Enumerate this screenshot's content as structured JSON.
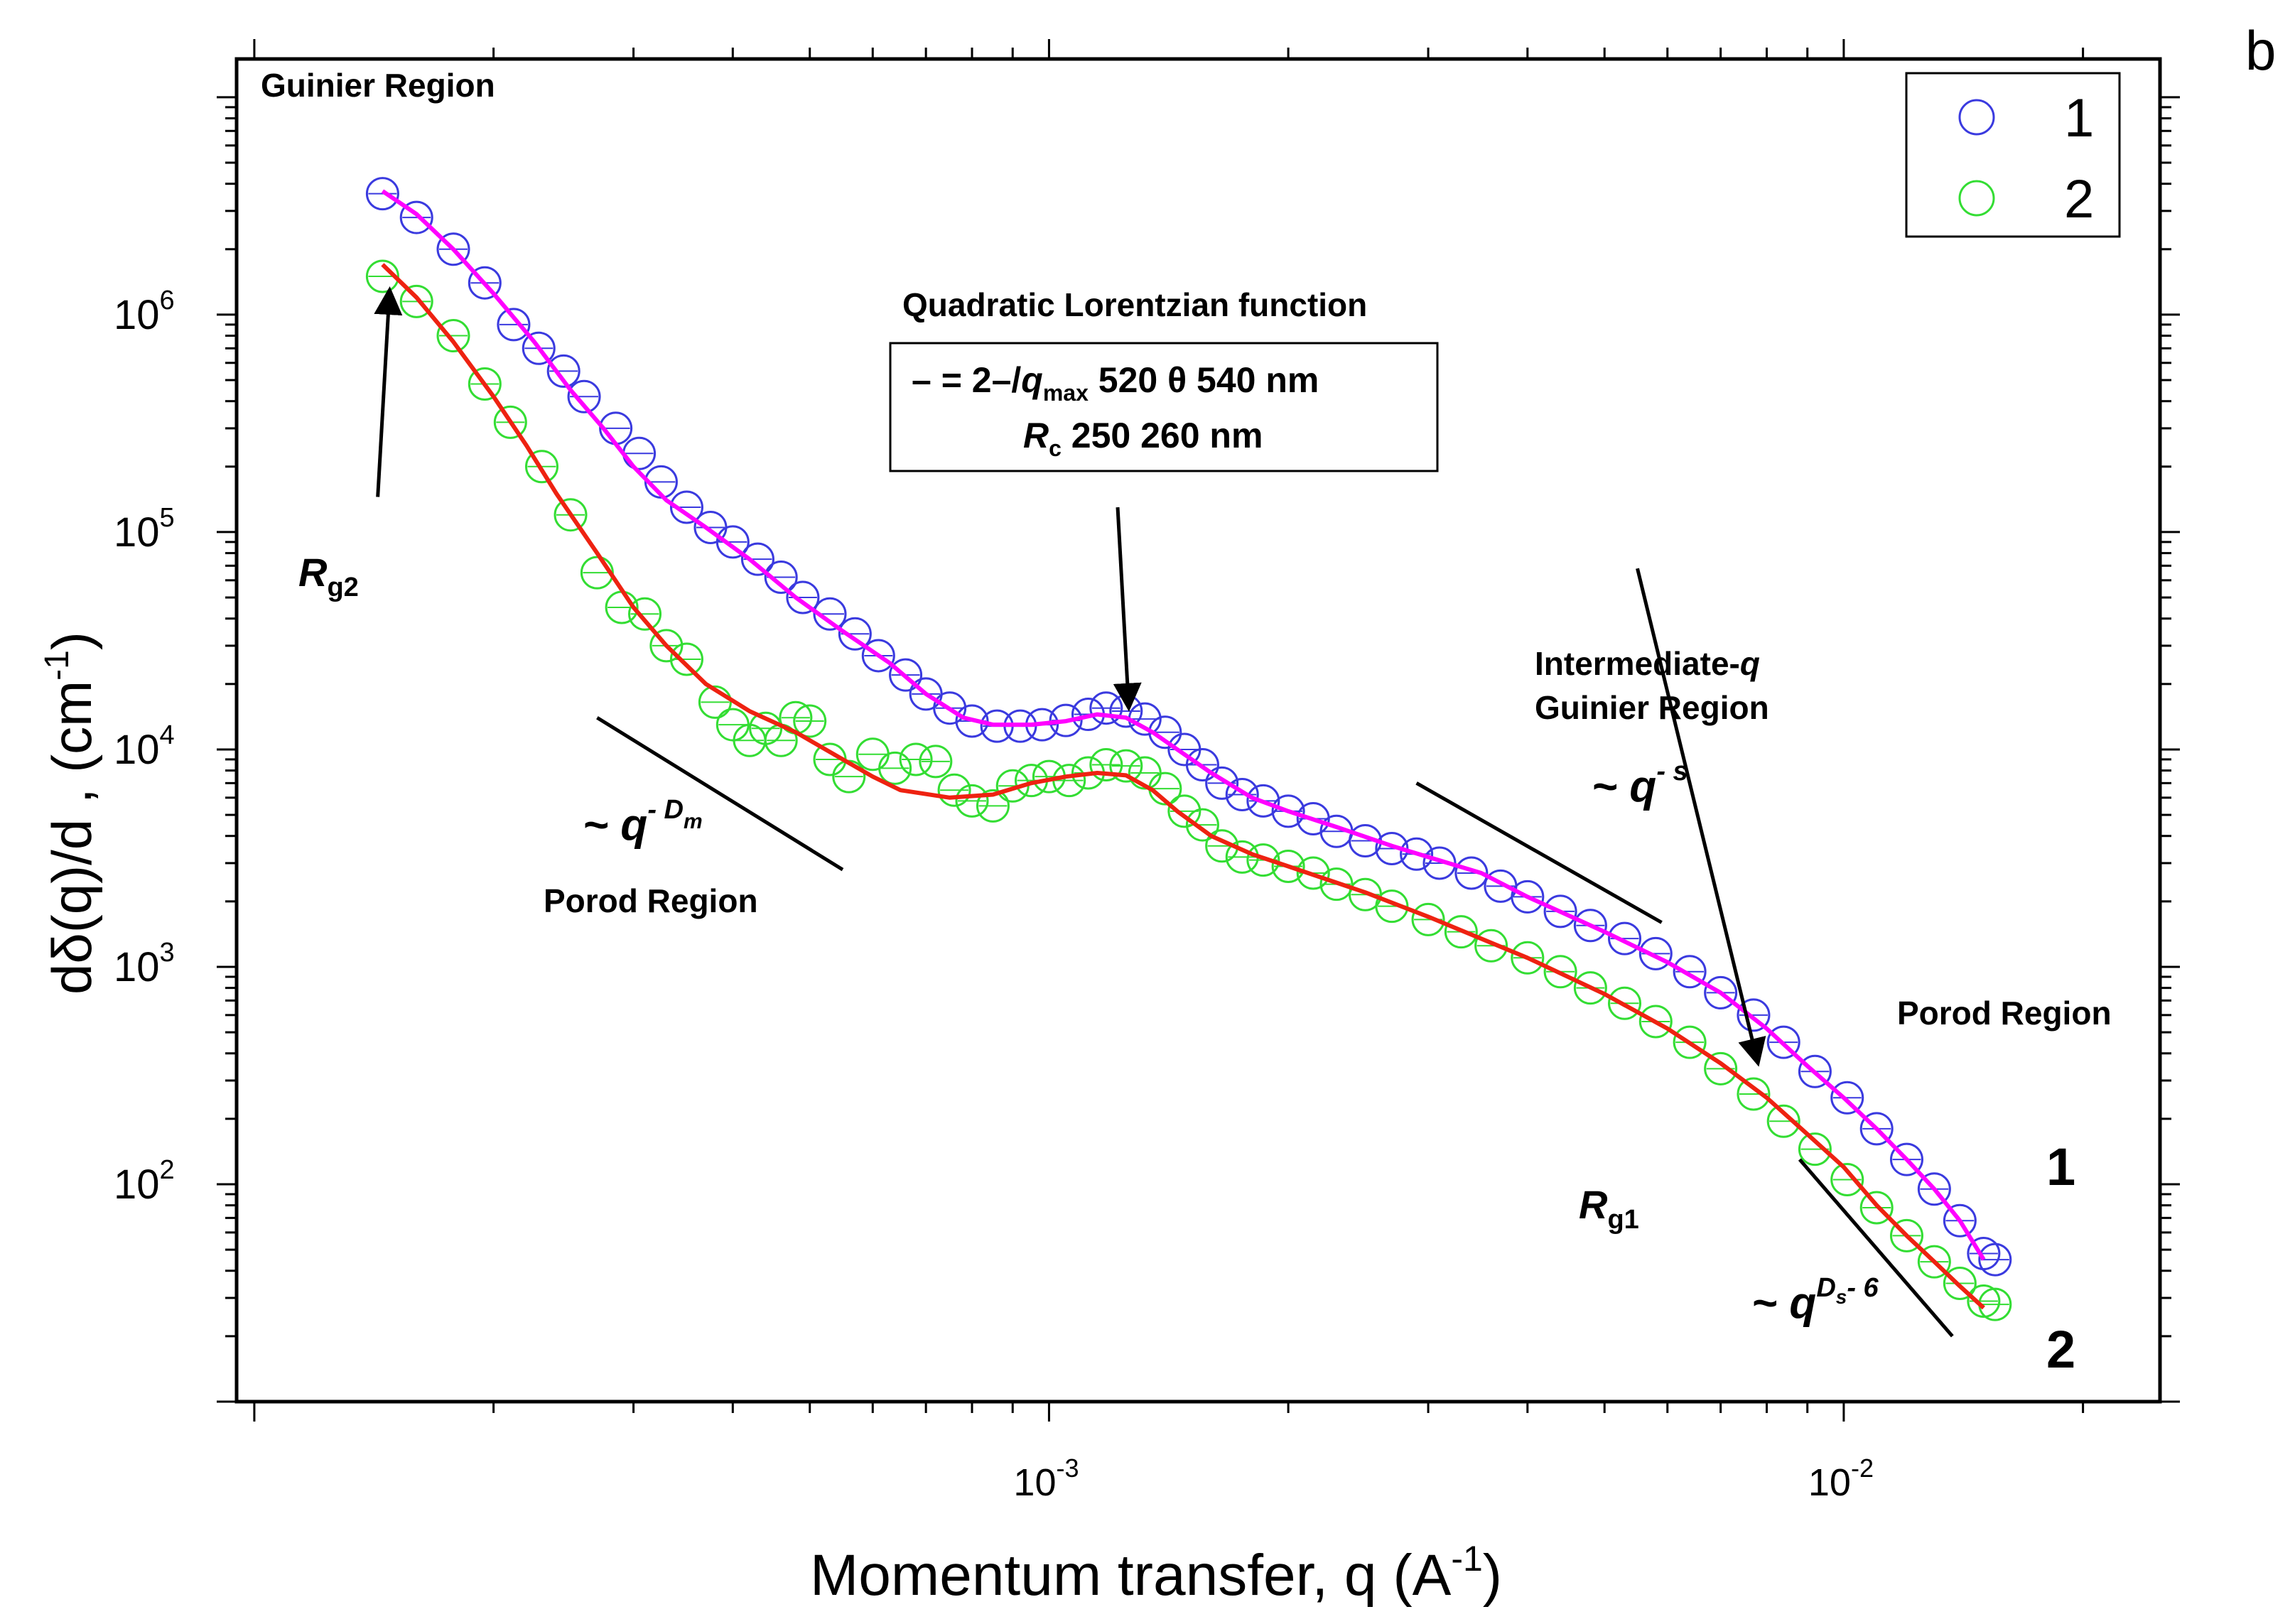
{
  "chart_data": {
    "type": "scatter",
    "panel_label": "b",
    "xlabel": "Momentum transfer, q (A",
    "xlabel_exp": "-1",
    "xlabel_close": ")",
    "ylabel": "dδ(q)/d  , (cm",
    "ylabel_exp": "-1",
    "ylabel_close": ")",
    "x_scale": "log",
    "y_scale": "log",
    "xlim": [
      9.5e-05,
      0.025
    ],
    "ylim": [
      10,
      15000000
    ],
    "x_ticks": [
      {
        "value": 0.001,
        "mantissa": "10",
        "exp": "-3"
      },
      {
        "value": 0.01,
        "mantissa": "10",
        "exp": "-2"
      }
    ],
    "y_ticks": [
      {
        "value": 100,
        "mantissa": "10",
        "exp": "2"
      },
      {
        "value": 1000,
        "mantissa": "10",
        "exp": "3"
      },
      {
        "value": 10000,
        "mantissa": "10",
        "exp": "4"
      },
      {
        "value": 100000,
        "mantissa": "10",
        "exp": "5"
      },
      {
        "value": 1000000,
        "mantissa": "10",
        "exp": "6"
      }
    ],
    "legend": {
      "position": "top-right",
      "entries": [
        {
          "label": "1",
          "color": "#3a3adf"
        },
        {
          "label": "2",
          "color": "#33dd33"
        }
      ]
    },
    "series": [
      {
        "name": "1",
        "marker": "open-circle",
        "color": "#3a3adf",
        "fit_color": "#ff00ff",
        "points": [
          [
            0.000145,
            3600000
          ],
          [
            0.00016,
            2800000
          ],
          [
            0.000178,
            2000000
          ],
          [
            0.000195,
            1400000
          ],
          [
            0.000212,
            900000
          ],
          [
            0.000228,
            700000
          ],
          [
            0.000245,
            550000
          ],
          [
            0.00026,
            420000
          ],
          [
            0.000285,
            300000
          ],
          [
            0.000305,
            230000
          ],
          [
            0.000325,
            170000
          ],
          [
            0.00035,
            130000
          ],
          [
            0.000375,
            105000
          ],
          [
            0.0004,
            90000
          ],
          [
            0.00043,
            75000
          ],
          [
            0.00046,
            62000
          ],
          [
            0.00049,
            50000
          ],
          [
            0.00053,
            42000
          ],
          [
            0.00057,
            34000
          ],
          [
            0.00061,
            27000
          ],
          [
            0.00066,
            22000
          ],
          [
            0.0007,
            18000
          ],
          [
            0.00075,
            15500
          ],
          [
            0.0008,
            13500
          ],
          [
            0.00086,
            12800
          ],
          [
            0.00092,
            12800
          ],
          [
            0.00098,
            13000
          ],
          [
            0.00105,
            13600
          ],
          [
            0.00112,
            14500
          ],
          [
            0.00118,
            15500
          ],
          [
            0.00125,
            15000
          ],
          [
            0.00132,
            13800
          ],
          [
            0.0014,
            12000
          ],
          [
            0.00148,
            10000
          ],
          [
            0.00156,
            8500
          ],
          [
            0.00165,
            7000
          ],
          [
            0.00175,
            6200
          ],
          [
            0.00186,
            5800
          ],
          [
            0.002,
            5200
          ],
          [
            0.00215,
            4800
          ],
          [
            0.0023,
            4200
          ],
          [
            0.0025,
            3800
          ],
          [
            0.0027,
            3500
          ],
          [
            0.0029,
            3300
          ],
          [
            0.0031,
            3000
          ],
          [
            0.0034,
            2700
          ],
          [
            0.0037,
            2350
          ],
          [
            0.004,
            2100
          ],
          [
            0.0044,
            1800
          ],
          [
            0.0048,
            1550
          ],
          [
            0.0053,
            1350
          ],
          [
            0.0058,
            1150
          ],
          [
            0.0064,
            950
          ],
          [
            0.007,
            760
          ],
          [
            0.0077,
            600
          ],
          [
            0.0084,
            450
          ],
          [
            0.0092,
            330
          ],
          [
            0.0101,
            250
          ],
          [
            0.011,
            180
          ],
          [
            0.012,
            130
          ],
          [
            0.013,
            95
          ],
          [
            0.014,
            68
          ],
          [
            0.015,
            48
          ],
          [
            0.0155,
            45
          ]
        ],
        "fit": [
          [
            0.000145,
            3700000
          ],
          [
            0.00016,
            2900000
          ],
          [
            0.000178,
            2000000
          ],
          [
            0.0002,
            1250000
          ],
          [
            0.000225,
            750000
          ],
          [
            0.00025,
            450000
          ],
          [
            0.000275,
            300000
          ],
          [
            0.0003,
            200000
          ],
          [
            0.00033,
            140000
          ],
          [
            0.00037,
            105000
          ],
          [
            0.00042,
            75000
          ],
          [
            0.00048,
            50000
          ],
          [
            0.00055,
            35000
          ],
          [
            0.00063,
            25000
          ],
          [
            0.0007,
            18000
          ],
          [
            0.00078,
            14000
          ],
          [
            0.00085,
            13000
          ],
          [
            0.00095,
            13000
          ],
          [
            0.00105,
            13500
          ],
          [
            0.00115,
            14500
          ],
          [
            0.00125,
            14000
          ],
          [
            0.00135,
            12000
          ],
          [
            0.00145,
            10000
          ],
          [
            0.0016,
            7800
          ],
          [
            0.0018,
            6000
          ],
          [
            0.002,
            5200
          ],
          [
            0.0023,
            4400
          ],
          [
            0.0027,
            3600
          ],
          [
            0.003,
            3200
          ],
          [
            0.0035,
            2700
          ],
          [
            0.004,
            2100
          ],
          [
            0.005,
            1450
          ],
          [
            0.006,
            1050
          ],
          [
            0.007,
            760
          ],
          [
            0.008,
            520
          ],
          [
            0.009,
            350
          ],
          [
            0.01,
            250
          ],
          [
            0.011,
            180
          ],
          [
            0.012,
            130
          ],
          [
            0.013,
            95
          ],
          [
            0.014,
            68
          ],
          [
            0.015,
            45
          ]
        ]
      },
      {
        "name": "2",
        "marker": "open-circle",
        "color": "#33dd33",
        "fit_color": "#ee2211",
        "points": [
          [
            0.000145,
            1500000
          ],
          [
            0.00016,
            1150000
          ],
          [
            0.000178,
            800000
          ],
          [
            0.000195,
            480000
          ],
          [
            0.00021,
            320000
          ],
          [
            0.00023,
            200000
          ],
          [
            0.00025,
            120000
          ],
          [
            0.00027,
            65000
          ],
          [
            0.00029,
            45000
          ],
          [
            0.00031,
            42000
          ],
          [
            0.00033,
            30000
          ],
          [
            0.00035,
            26000
          ],
          [
            0.00038,
            16500
          ],
          [
            0.0004,
            13000
          ],
          [
            0.00042,
            11000
          ],
          [
            0.00044,
            12500
          ],
          [
            0.00046,
            11000
          ],
          [
            0.00048,
            14000
          ],
          [
            0.0005,
            13500
          ],
          [
            0.00053,
            9000
          ],
          [
            0.00056,
            7500
          ],
          [
            0.0006,
            9500
          ],
          [
            0.00064,
            8200
          ],
          [
            0.00068,
            9000
          ],
          [
            0.00072,
            8800
          ],
          [
            0.00076,
            6500
          ],
          [
            0.0008,
            5800
          ],
          [
            0.00085,
            5500
          ],
          [
            0.0009,
            6800
          ],
          [
            0.00095,
            7200
          ],
          [
            0.001,
            7500
          ],
          [
            0.00106,
            7200
          ],
          [
            0.00112,
            7800
          ],
          [
            0.00118,
            8500
          ],
          [
            0.00125,
            8400
          ],
          [
            0.00132,
            7800
          ],
          [
            0.0014,
            6600
          ],
          [
            0.00148,
            5200
          ],
          [
            0.00156,
            4500
          ],
          [
            0.00165,
            3600
          ],
          [
            0.00175,
            3200
          ],
          [
            0.00186,
            3100
          ],
          [
            0.002,
            2900
          ],
          [
            0.00215,
            2700
          ],
          [
            0.0023,
            2400
          ],
          [
            0.0025,
            2150
          ],
          [
            0.0027,
            1900
          ],
          [
            0.003,
            1650
          ],
          [
            0.0033,
            1450
          ],
          [
            0.0036,
            1250
          ],
          [
            0.004,
            1100
          ],
          [
            0.0044,
            950
          ],
          [
            0.0048,
            800
          ],
          [
            0.0053,
            680
          ],
          [
            0.0058,
            560
          ],
          [
            0.0064,
            450
          ],
          [
            0.007,
            340
          ],
          [
            0.0077,
            260
          ],
          [
            0.0084,
            195
          ],
          [
            0.0092,
            145
          ],
          [
            0.0101,
            105
          ],
          [
            0.011,
            78
          ],
          [
            0.012,
            58
          ],
          [
            0.013,
            44
          ],
          [
            0.014,
            35
          ],
          [
            0.015,
            29
          ],
          [
            0.0155,
            28
          ]
        ],
        "fit": [
          [
            0.000145,
            1700000
          ],
          [
            0.00016,
            1200000
          ],
          [
            0.000178,
            750000
          ],
          [
            0.0002,
            420000
          ],
          [
            0.00022,
            250000
          ],
          [
            0.00024,
            150000
          ],
          [
            0.00027,
            80000
          ],
          [
            0.0003,
            45000
          ],
          [
            0.00033,
            30000
          ],
          [
            0.00037,
            20000
          ],
          [
            0.00042,
            15000
          ],
          [
            0.00048,
            12000
          ],
          [
            0.00055,
            9000
          ],
          [
            0.0006,
            7500
          ],
          [
            0.00065,
            6500
          ],
          [
            0.00075,
            6000
          ],
          [
            0.00085,
            6200
          ],
          [
            0.00095,
            7000
          ],
          [
            0.00105,
            7500
          ],
          [
            0.00115,
            7800
          ],
          [
            0.00125,
            7600
          ],
          [
            0.00135,
            6500
          ],
          [
            0.00145,
            5200
          ],
          [
            0.0016,
            4000
          ],
          [
            0.0018,
            3300
          ],
          [
            0.002,
            2900
          ],
          [
            0.0025,
            2200
          ],
          [
            0.003,
            1700
          ],
          [
            0.004,
            1100
          ],
          [
            0.005,
            750
          ],
          [
            0.006,
            520
          ],
          [
            0.007,
            360
          ],
          [
            0.008,
            250
          ],
          [
            0.009,
            170
          ],
          [
            0.01,
            120
          ],
          [
            0.011,
            80
          ],
          [
            0.012,
            58
          ],
          [
            0.013,
            44
          ],
          [
            0.014,
            34
          ],
          [
            0.015,
            27
          ]
        ]
      }
    ],
    "end_labels": [
      {
        "text": "1",
        "q": 0.0145,
        "y": 100
      },
      {
        "text": "2",
        "q": 0.0145,
        "y": 23
      }
    ],
    "slope_lines": [
      {
        "name": "guide-porod-low",
        "from": [
          0.00027,
          14000
        ],
        "to": [
          0.00055,
          2800
        ]
      },
      {
        "name": "guide-intermediate",
        "from": [
          0.0029,
          7000
        ],
        "to": [
          0.0059,
          1600
        ]
      },
      {
        "name": "guide-porod-high",
        "from": [
          0.0088,
          130
        ],
        "to": [
          0.0137,
          20
        ]
      }
    ],
    "arrows": [
      {
        "name": "arrow-rg2",
        "from": [
          0.000143,
          145000
        ],
        "to": [
          0.000148,
          1300000
        ]
      },
      {
        "name": "arrow-quadratic",
        "from": [
          0.00122,
          130000
        ],
        "to": [
          0.00126,
          15500
        ]
      },
      {
        "name": "arrow-rg1",
        "from": [
          0.0055,
          68000
        ],
        "to": [
          0.0078,
          360
        ]
      }
    ],
    "annotations": {
      "guinier": "Guinier Region",
      "rg2_main": "R",
      "rg2_sub": "g2",
      "porod_low_head": "~ q",
      "porod_low_exp": "- D",
      "porod_low_sub": "m",
      "porod_low_label": "Porod Region",
      "quad_title": "Quadratic Lorentzian function",
      "quad_line1_a": "– = 2–/",
      "quad_line1_q": "q",
      "quad_line1_sub": "max",
      "quad_line1_rest": "  520 θ 540 nm",
      "quad_line2_r": "R",
      "quad_line2_sub": "c",
      "quad_line2_rest": "  250    260 nm",
      "interm_line1_a": "Intermediate-",
      "interm_line1_q": "q",
      "interm_line2": "Guinier Region",
      "interm_slope_head": "~ q",
      "interm_slope_exp": "- s",
      "porod_high_label": "Porod Region",
      "rg1_main": "R",
      "rg1_sub": "g1",
      "porod_high_head": "~ q",
      "porod_high_exp": "D",
      "porod_high_exp_sub": "s",
      "porod_high_exp_tail": "- 6"
    }
  }
}
